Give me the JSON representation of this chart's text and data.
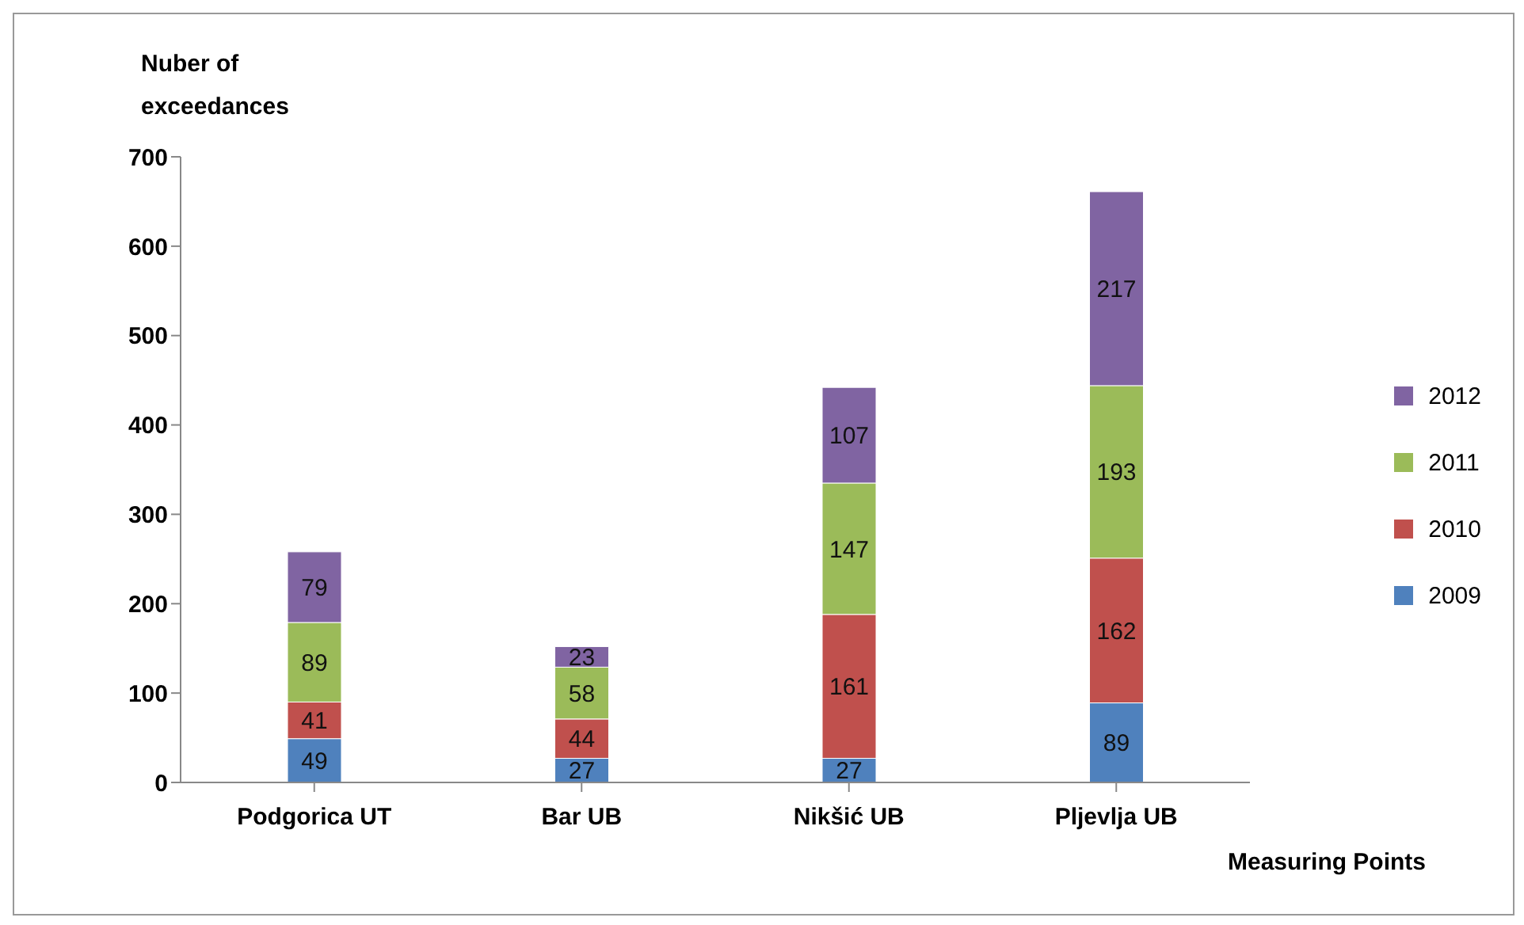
{
  "chart_data": {
    "type": "bar",
    "stacked": true,
    "data_labels": true,
    "ylabel": "Nuber of exceedances",
    "xlabel": "Measuring Points",
    "categories": [
      "Podgorica UT",
      "Bar UB",
      "Nikšić UB",
      "Pljevlja UB"
    ],
    "ylim": [
      0,
      700
    ],
    "yticks": [
      0,
      100,
      200,
      300,
      400,
      500,
      600,
      700
    ],
    "legend": "right",
    "series": [
      {
        "name": "2009",
        "color": "#4f81bd",
        "values": [
          49,
          27,
          27,
          89
        ]
      },
      {
        "name": "2010",
        "color": "#c0504d",
        "values": [
          41,
          44,
          161,
          162
        ]
      },
      {
        "name": "2011",
        "color": "#9bbb59",
        "values": [
          89,
          58,
          147,
          193
        ]
      },
      {
        "name": "2012",
        "color": "#8064a2",
        "values": [
          79,
          23,
          107,
          217
        ]
      }
    ]
  }
}
